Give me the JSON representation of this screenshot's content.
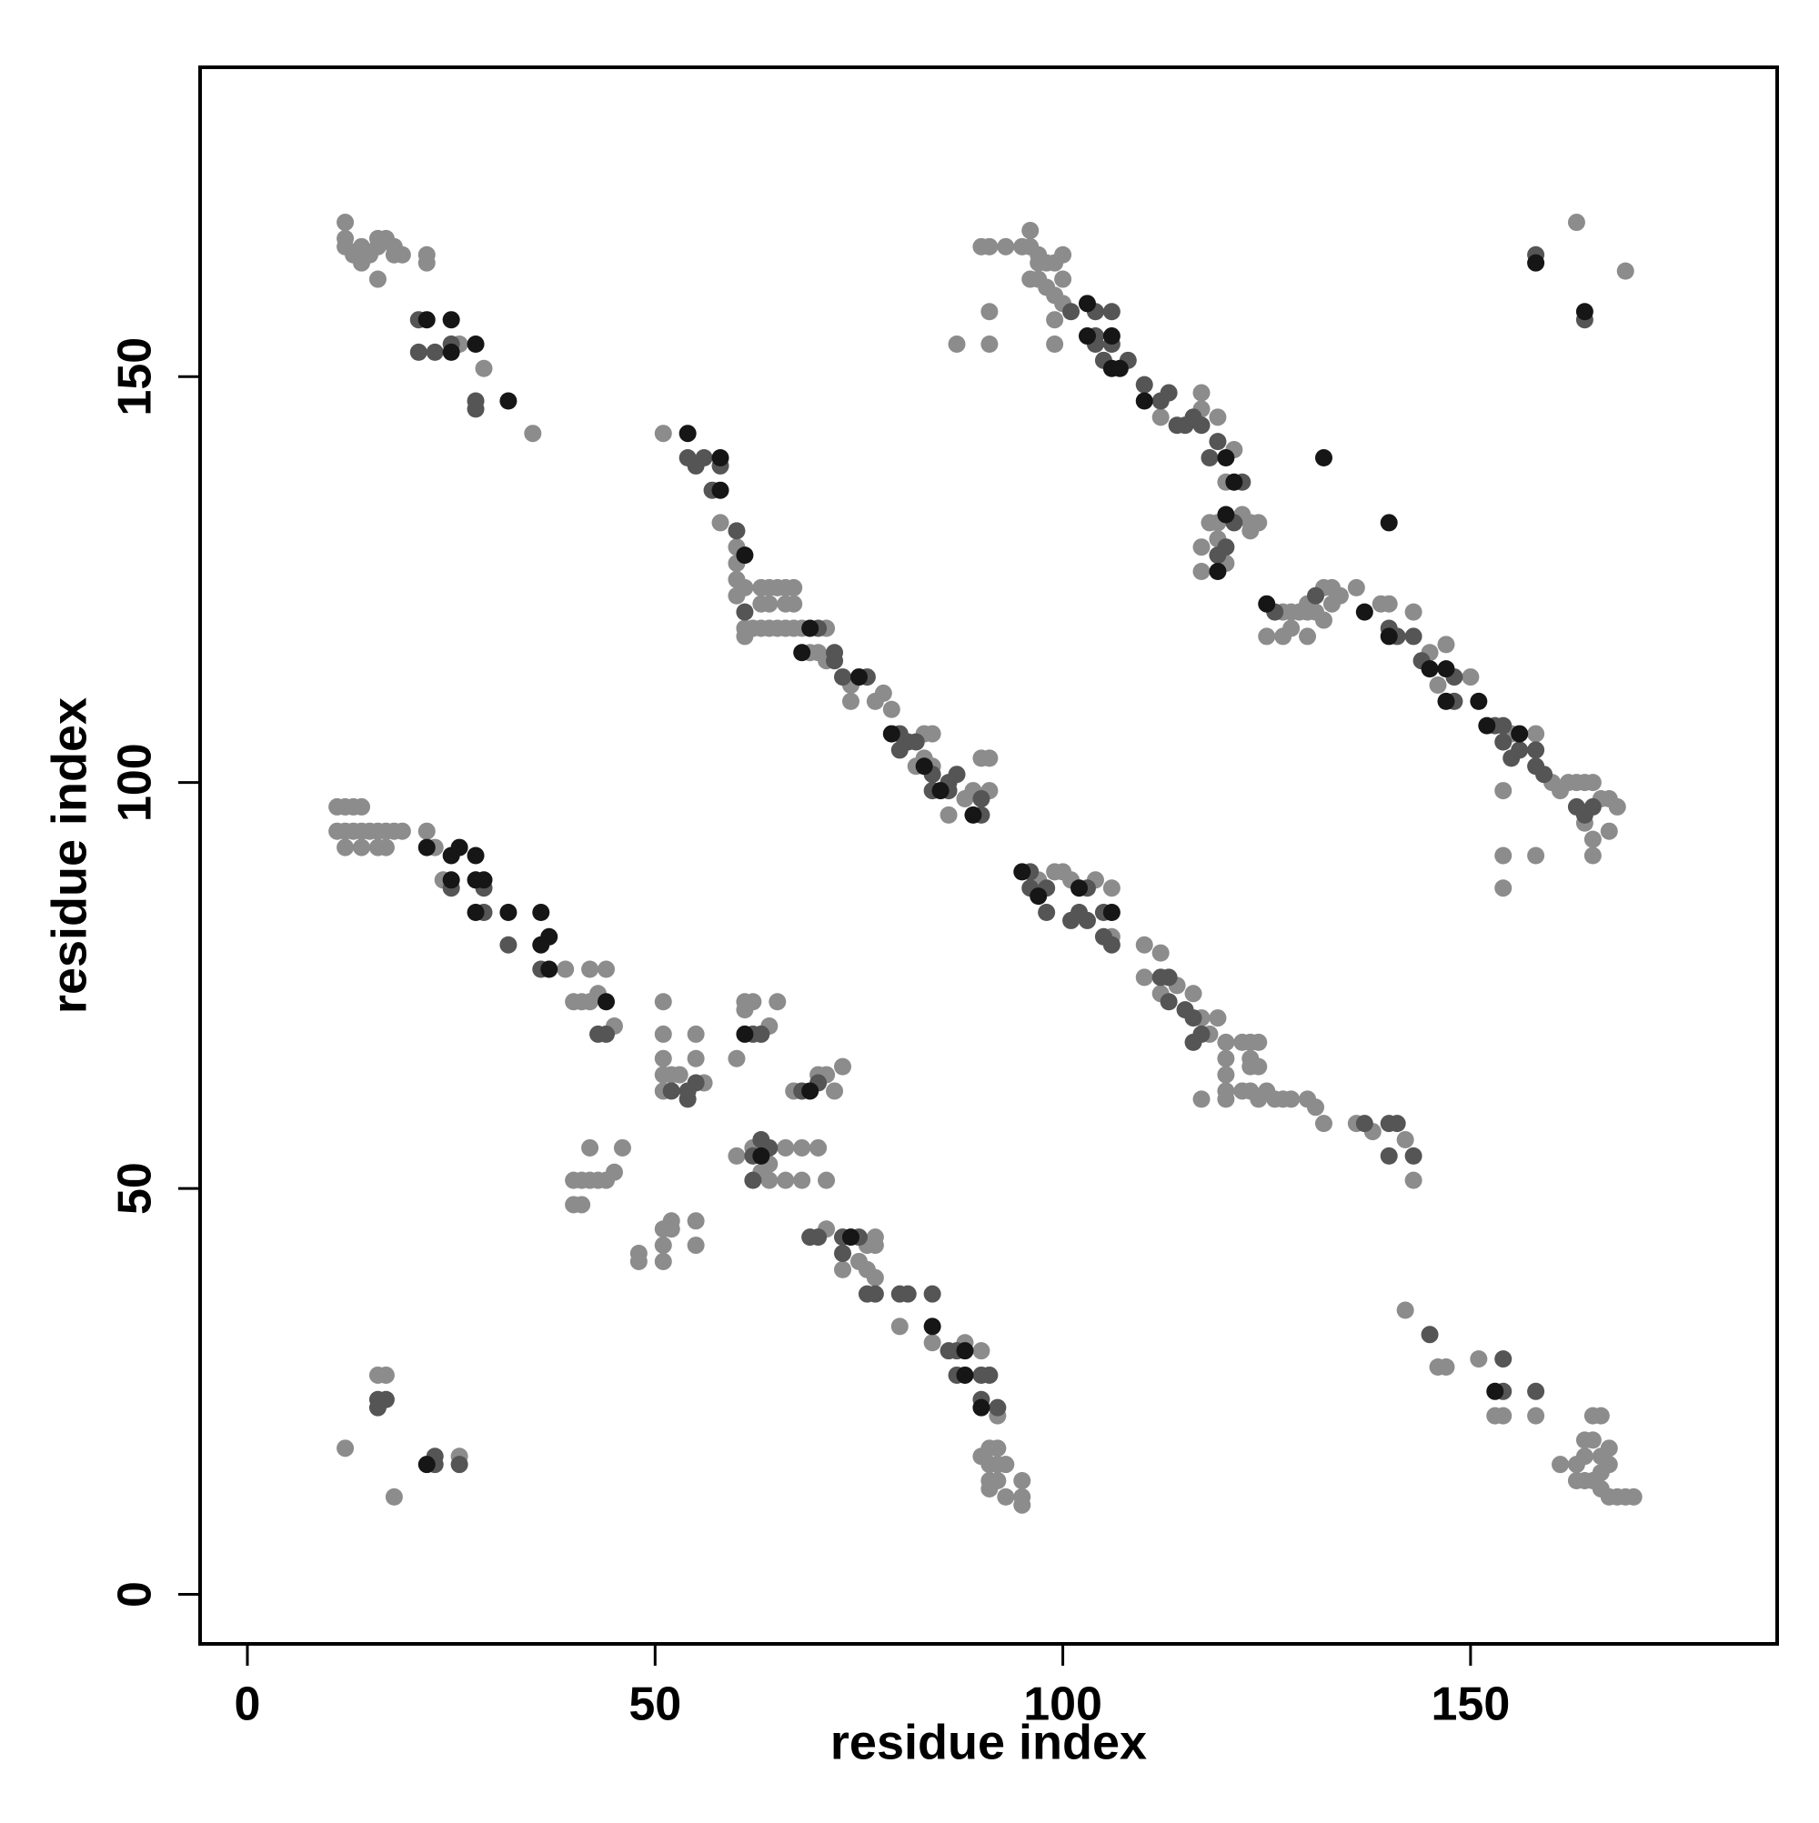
{
  "chart_data": {
    "type": "scatter",
    "x_label": "residue index",
    "y_label": "residue index",
    "xlim": [
      -5.8,
      187.6
    ],
    "ylim": [
      -6.1,
      188.1
    ],
    "xticks": [
      0,
      50,
      100,
      150
    ],
    "yticks": [
      0,
      50,
      100,
      150
    ],
    "series": [
      {
        "color": "#8c8c8c",
        "x": [
          12,
          12,
          12,
          13,
          14,
          14,
          15,
          16,
          16,
          17,
          18,
          18,
          19,
          22,
          22,
          16,
          26,
          29,
          35,
          51,
          58,
          60,
          60,
          60,
          60,
          61,
          61,
          61,
          63,
          64,
          65,
          66,
          67,
          63,
          64,
          66,
          67,
          62,
          63,
          64,
          65,
          66,
          67,
          68,
          71,
          69,
          70,
          71,
          74,
          74,
          77,
          78,
          79,
          83,
          84,
          82,
          86,
          88,
          89,
          91,
          90,
          91,
          84,
          83,
          90,
          91,
          93,
          95,
          96,
          96,
          97,
          97,
          98,
          99,
          100,
          96,
          97,
          100,
          98,
          99,
          100,
          99,
          112,
          117,
          117,
          119,
          121,
          120,
          118,
          119,
          122,
          123,
          123,
          124,
          119,
          117,
          117,
          120,
          127,
          128,
          128,
          129,
          130,
          130,
          131,
          132,
          133,
          133,
          134,
          132,
          130,
          127,
          125,
          136,
          139,
          140,
          143,
          145,
          146,
          147,
          150,
          155,
          158,
          160,
          161,
          162,
          163,
          164,
          165,
          166,
          167,
          168,
          164,
          165,
          167,
          165,
          154,
          158,
          154,
          154,
          87,
          91,
          91,
          99,
          163,
          169,
          11,
          12,
          13,
          14,
          15,
          11,
          12,
          13,
          14,
          16,
          17,
          18,
          19,
          12,
          14,
          16,
          17,
          22,
          23,
          24,
          39,
          42,
          44,
          40,
          41,
          42,
          43,
          45,
          51,
          51,
          51,
          51,
          52,
          53,
          51,
          55,
          56,
          55,
          61,
          62,
          61,
          64,
          60,
          65,
          62,
          64,
          63,
          64,
          66,
          68,
          66,
          68,
          70,
          71,
          67,
          70,
          71,
          72,
          73,
          60,
          42,
          40,
          41,
          42,
          43,
          44,
          45,
          46,
          40,
          41,
          48,
          48,
          51,
          51,
          51,
          52,
          52,
          55,
          55,
          71,
          73,
          75,
          76,
          77,
          77,
          76,
          77,
          80,
          84,
          88,
          90,
          92,
          91,
          92,
          90,
          91,
          92,
          93,
          91,
          92,
          95,
          91,
          93,
          95,
          95,
          97,
          99,
          100,
          101,
          104,
          106,
          106,
          110,
          112,
          110,
          112,
          114,
          116,
          117,
          118,
          119,
          120,
          120,
          120,
          120,
          120,
          122,
          123,
          124,
          123,
          123,
          124,
          122,
          123,
          124,
          125,
          126,
          127,
          128,
          130,
          131,
          132,
          136,
          138,
          142,
          143,
          117,
          142,
          146,
          147,
          151,
          153,
          154,
          158,
          161,
          163,
          164,
          165,
          164,
          164,
          165,
          166,
          165,
          166,
          166,
          167,
          167,
          166,
          167,
          168,
          169,
          170,
          163,
          16,
          17,
          12,
          26,
          18
        ],
        "values": [
          169,
          167,
          166,
          165,
          166,
          164,
          165,
          166,
          167,
          167,
          166,
          165,
          165,
          165,
          164,
          162,
          154,
          151,
          143,
          143,
          132,
          129,
          127,
          125,
          123,
          124,
          118,
          119,
          124,
          124,
          124,
          124,
          124,
          122,
          122,
          122,
          122,
          119,
          119,
          119,
          119,
          119,
          119,
          119,
          119,
          116,
          116,
          115,
          112,
          110,
          110,
          111,
          109,
          106,
          106,
          102,
          96,
          98,
          99,
          99,
          103,
          103,
          102,
          103,
          166,
          166,
          166,
          166,
          168,
          166,
          164,
          165,
          164,
          164,
          165,
          162,
          162,
          162,
          161,
          160,
          159,
          157,
          145,
          146,
          148,
          145,
          141,
          137,
          132,
          132,
          133,
          131,
          132,
          132,
          130,
          129,
          126,
          127,
          121,
          121,
          119,
          121,
          122,
          121,
          121,
          124,
          124,
          122,
          123,
          120,
          118,
          118,
          118,
          124,
          122,
          122,
          121,
          116,
          112,
          117,
          113,
          106,
          106,
          100,
          99,
          100,
          100,
          100,
          100,
          98,
          98,
          97,
          95,
          93,
          94,
          91,
          91,
          91,
          87,
          99,
          154,
          154,
          158,
          154,
          169,
          163,
          97,
          97,
          97,
          97,
          94,
          94,
          94,
          94,
          94,
          94,
          94,
          94,
          94,
          92,
          92,
          92,
          92,
          94,
          92,
          88,
          77,
          77,
          77,
          73,
          73,
          73,
          74,
          70,
          73,
          69,
          66,
          64,
          64,
          64,
          62,
          66,
          63,
          69,
          73,
          73,
          72,
          70,
          66,
          73,
          55,
          53,
          52,
          51,
          51,
          51,
          55,
          55,
          55,
          51,
          62,
          64,
          64,
          62,
          65,
          54,
          55,
          51,
          51,
          51,
          51,
          51,
          52,
          55,
          48,
          48,
          41,
          42,
          41,
          43,
          45,
          46,
          45,
          43,
          46,
          45,
          40,
          41,
          43,
          43,
          44,
          40,
          39,
          33,
          31,
          31,
          30,
          22,
          18,
          18,
          17,
          16,
          16,
          16,
          14,
          14,
          14,
          13,
          12,
          12,
          11,
          88,
          89,
          89,
          88,
          88,
          87,
          81,
          80,
          79,
          76,
          74,
          75,
          74,
          71,
          69,
          71,
          68,
          66,
          64,
          62,
          61,
          68,
          68,
          68,
          66,
          65,
          65,
          62,
          62,
          61,
          62,
          61,
          61,
          61,
          61,
          60,
          58,
          58,
          57,
          56,
          51,
          61,
          35,
          28,
          28,
          29,
          22,
          22,
          22,
          16,
          14,
          14,
          14,
          17,
          19,
          22,
          22,
          19,
          17,
          15,
          18,
          16,
          13,
          12,
          12,
          12,
          12,
          16,
          27,
          27,
          18,
          17,
          12
        ]
      },
      {
        "color": "#555555",
        "x": [
          21,
          21,
          23,
          25,
          28,
          28,
          54,
          55,
          56,
          58,
          57,
          60,
          61,
          70,
          72,
          72,
          73,
          76,
          80,
          81,
          82,
          80,
          84,
          84,
          86,
          86,
          87,
          90,
          90,
          101,
          104,
          106,
          104,
          106,
          104,
          105,
          108,
          110,
          112,
          113,
          114,
          115,
          116,
          117,
          118,
          119,
          122,
          121,
          119,
          120,
          126,
          131,
          140,
          141,
          143,
          144,
          148,
          148,
          153,
          154,
          154,
          155,
          156,
          158,
          158,
          159,
          163,
          164,
          165,
          25,
          29,
          29,
          32,
          36,
          43,
          44,
          62,
          63,
          62,
          63,
          64,
          62,
          55,
          54,
          54,
          52,
          68,
          70,
          69,
          70,
          73,
          75,
          73,
          76,
          77,
          80,
          81,
          84,
          86,
          87,
          87,
          90,
          91,
          90,
          92,
          96,
          96,
          98,
          98,
          101,
          102,
          103,
          103,
          105,
          105,
          106,
          112,
          113,
          113,
          115,
          116,
          117,
          116,
          137,
          140,
          141,
          140,
          143,
          145,
          154,
          154,
          158,
          158,
          164,
          16,
          17,
          16,
          23,
          23,
          26
        ],
        "values": [
          157,
          153,
          153,
          154,
          146,
          147,
          140,
          139,
          140,
          139,
          136,
          131,
          121,
          119,
          115,
          116,
          113,
          113,
          106,
          105,
          105,
          104,
          101,
          99,
          99,
          100,
          101,
          96,
          98,
          158,
          158,
          158,
          155,
          154,
          154,
          152,
          152,
          149,
          147,
          148,
          144,
          144,
          145,
          144,
          140,
          142,
          137,
          132,
          128,
          129,
          121,
          123,
          119,
          118,
          118,
          115,
          113,
          110,
          107,
          107,
          105,
          103,
          104,
          104,
          102,
          101,
          97,
          96,
          97,
          87,
          87,
          84,
          80,
          77,
          69,
          69,
          69,
          69,
          54,
          56,
          55,
          51,
          63,
          62,
          61,
          62,
          62,
          63,
          44,
          44,
          44,
          44,
          42,
          37,
          37,
          37,
          37,
          37,
          30,
          30,
          27,
          27,
          27,
          24,
          23,
          89,
          87,
          87,
          84,
          83,
          84,
          83,
          87,
          84,
          81,
          80,
          76,
          76,
          73,
          72,
          71,
          69,
          68,
          58,
          58,
          58,
          54,
          54,
          32,
          25,
          29,
          25,
          165,
          157,
          24,
          24,
          23,
          17,
          16,
          16
        ]
      },
      {
        "color": "#161616",
        "x": [
          22,
          25,
          25,
          28,
          32,
          54,
          58,
          58,
          61,
          69,
          68,
          75,
          79,
          83,
          85,
          89,
          103,
          103,
          106,
          106,
          107,
          110,
          120,
          121,
          120,
          119,
          125,
          137,
          140,
          145,
          147,
          147,
          151,
          152,
          156,
          132,
          140,
          22,
          25,
          26,
          28,
          25,
          28,
          29,
          28,
          32,
          36,
          36,
          37,
          37,
          44,
          61,
          63,
          69,
          74,
          84,
          88,
          88,
          90,
          95,
          97,
          102,
          106,
          22,
          153,
          158,
          164
        ],
        "values": [
          157,
          157,
          153,
          154,
          147,
          143,
          140,
          136,
          128,
          119,
          116,
          113,
          106,
          102,
          99,
          96,
          159,
          155,
          155,
          151,
          151,
          147,
          140,
          137,
          133,
          126,
          122,
          121,
          118,
          114,
          114,
          110,
          110,
          107,
          106,
          140,
          132,
          92,
          91,
          92,
          91,
          88,
          88,
          88,
          84,
          84,
          84,
          80,
          81,
          77,
          73,
          69,
          54,
          62,
          44,
          33,
          30,
          27,
          23,
          89,
          86,
          87,
          84,
          16,
          25,
          164,
          158
        ]
      }
    ]
  }
}
